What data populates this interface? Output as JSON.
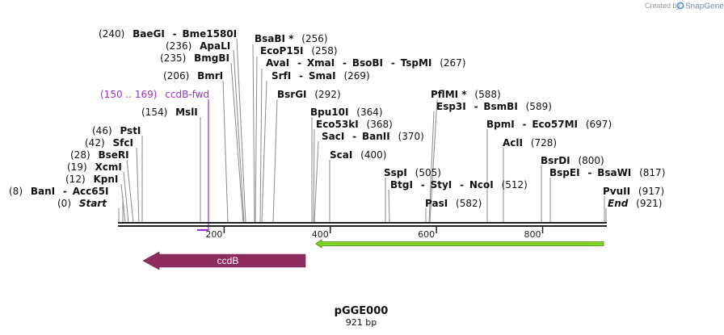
{
  "credit": {
    "prefix": "Created by",
    "brand": "SnapGene"
  },
  "title": "pGGE000",
  "length_label": "921 bp",
  "sequence_length": 921,
  "ticks": [
    {
      "value": 200,
      "label": "200"
    },
    {
      "value": 400,
      "label": "400"
    },
    {
      "value": 600,
      "label": "600"
    },
    {
      "value": 800,
      "label": "800"
    }
  ],
  "primer": {
    "range": "(150 .. 169)",
    "name": "ccdB-fwd",
    "color": "#9b30d0",
    "pos": 169
  },
  "features": [
    {
      "name": "ccdB",
      "color": "#8e2c5e"
    },
    {
      "name": "",
      "color": "#7ed321"
    }
  ],
  "site_labels": {
    "start": {
      "num": "(0)",
      "name": "Start"
    },
    "end": {
      "num": "(921)",
      "name": "End"
    },
    "banI": {
      "num": "(8)",
      "n1": "BanI",
      "sep": "-",
      "n2": "Acc65I"
    },
    "kpnI": {
      "num": "(12)",
      "name": "KpnI"
    },
    "xcmI": {
      "num": "(19)",
      "name": "XcmI"
    },
    "bseRI": {
      "num": "(28)",
      "name": "BseRI"
    },
    "sfcI": {
      "num": "(42)",
      "name": "SfcI"
    },
    "pstI": {
      "num": "(46)",
      "name": "PstI"
    },
    "mslI": {
      "num": "(154)",
      "name": "MslI"
    },
    "bmrI": {
      "num": "(206)",
      "name": "BmrI"
    },
    "bmgBI": {
      "num": "(235)",
      "name": "BmgBI"
    },
    "apaLI": {
      "num": "(236)",
      "name": "ApaLI"
    },
    "baeGI": {
      "num": "(240)",
      "n1": "BaeGI",
      "sep": "-",
      "n2": "Bme1580I"
    },
    "bsaBI": {
      "name": "BsaBI *",
      "num": "(256)"
    },
    "ecoP15I": {
      "name": "EcoP15I",
      "num": "(258)"
    },
    "avaI": {
      "n1": "AvaI",
      "n2": "XmaI",
      "n3": "BsoBI",
      "n4": "TspMI",
      "sep": "-",
      "num": "(267)"
    },
    "srfI": {
      "n1": "SrfI",
      "n2": "SmaI",
      "sep": "-",
      "num": "(269)"
    },
    "bsrGI": {
      "name": "BsrGI",
      "num": "(292)"
    },
    "bpu10I": {
      "name": "Bpu10I",
      "num": "(364)"
    },
    "eco53kI": {
      "name": "Eco53kI",
      "num": "(368)"
    },
    "sacI": {
      "n1": "SacI",
      "n2": "BanII",
      "sep": "-",
      "num": "(370)"
    },
    "scaI": {
      "name": "ScaI",
      "num": "(400)"
    },
    "sspI": {
      "name": "SspI",
      "num": "(505)"
    },
    "btgI": {
      "n1": "BtgI",
      "n2": "StyI",
      "n3": "NcoI",
      "sep": "-",
      "num": "(512)"
    },
    "pflMI": {
      "name": "PflMI *",
      "num": "(588)"
    },
    "esp3I": {
      "n1": "Esp3I",
      "n2": "BsmBI",
      "sep": "-",
      "num": "(589)"
    },
    "pasI": {
      "name": "PasI",
      "num": "(582)"
    },
    "bpmI": {
      "n1": "BpmI",
      "n2": "Eco57MI",
      "sep": "-",
      "num": "(697)"
    },
    "aclI": {
      "name": "AclI",
      "num": "(728)"
    },
    "bsrDI": {
      "name": "BsrDI",
      "num": "(800)"
    },
    "bspEI": {
      "n1": "BspEI",
      "n2": "BsaWI",
      "sep": "-",
      "num": "(817)"
    },
    "pvuII": {
      "name": "PvuII",
      "num": "(917)"
    }
  }
}
